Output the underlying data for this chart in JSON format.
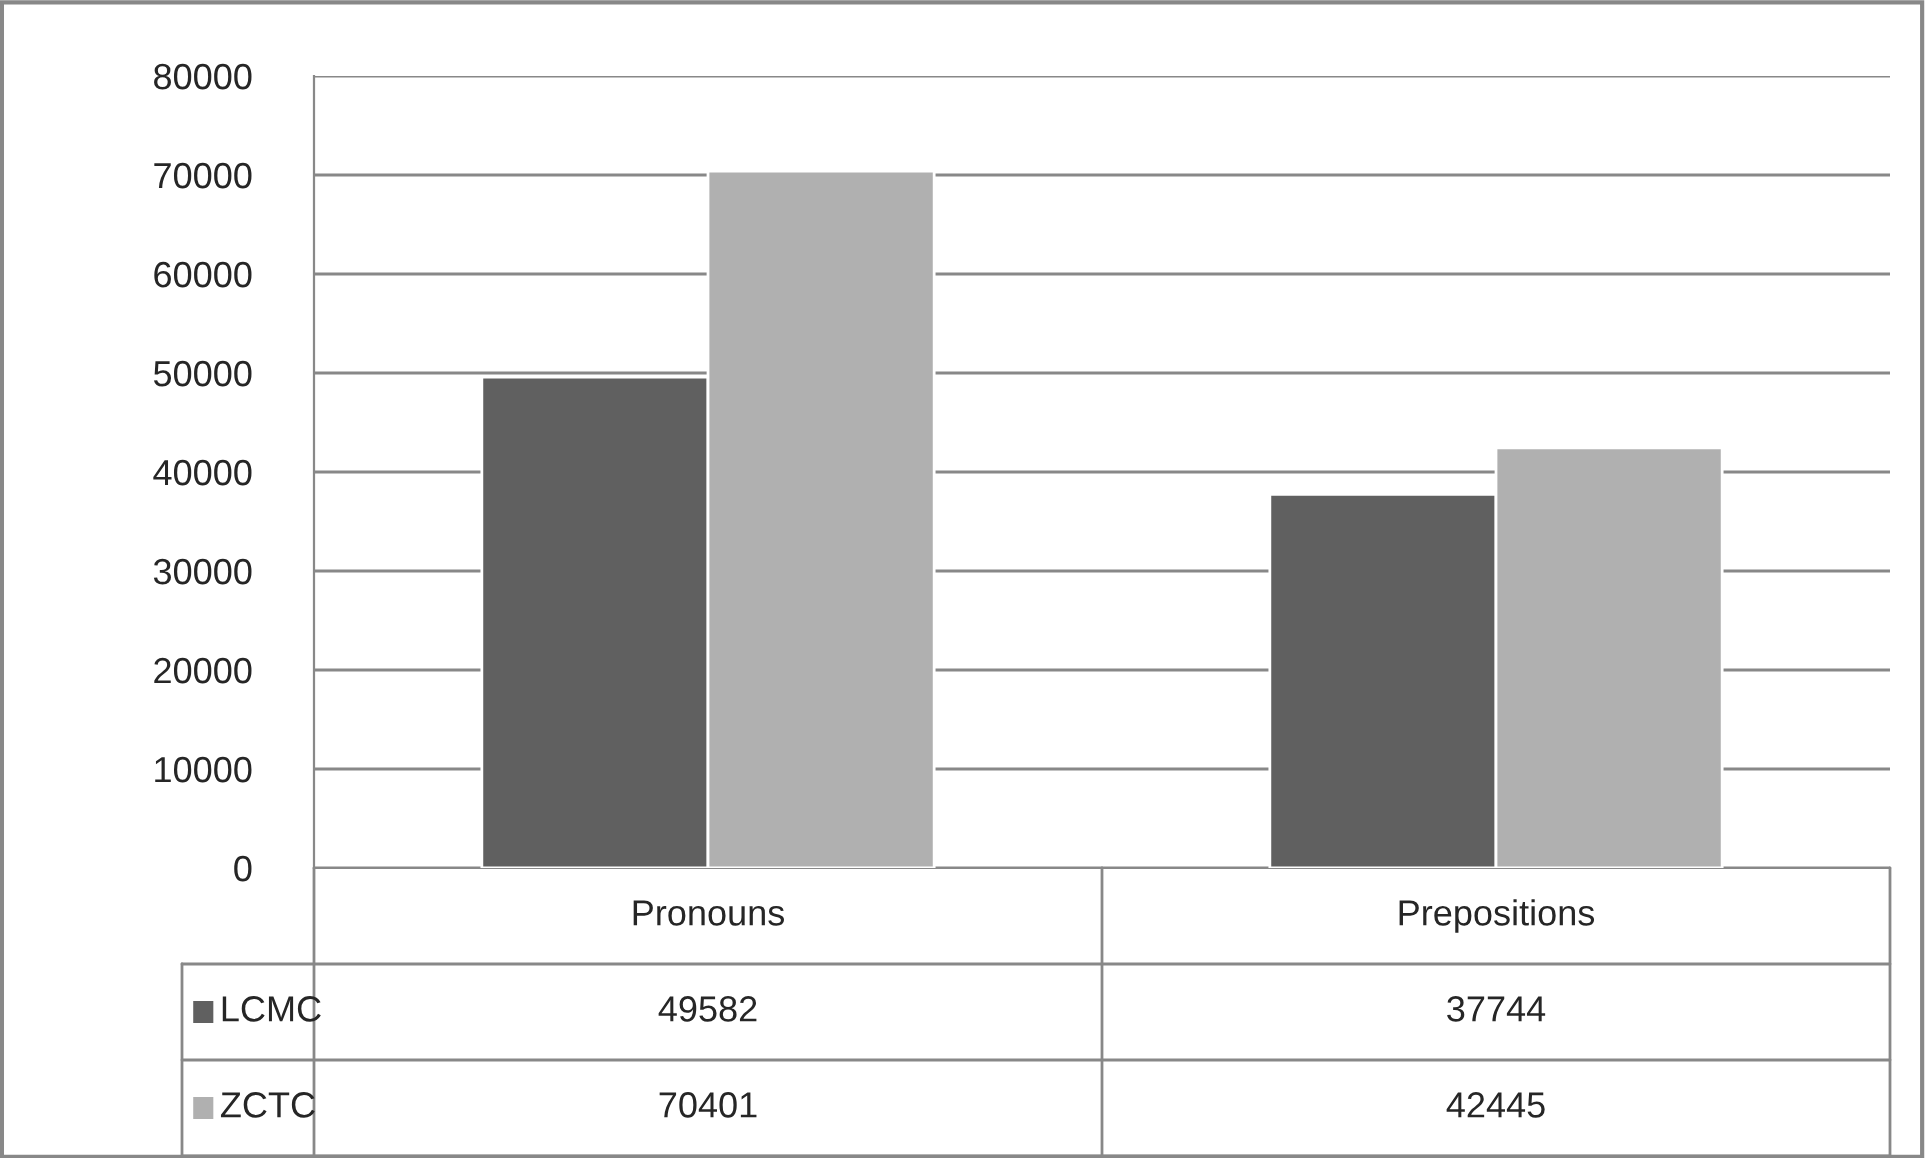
{
  "chart_data": {
    "type": "bar",
    "categories": [
      "Pronouns",
      "Prepositions"
    ],
    "series": [
      {
        "name": "LCMC",
        "color": "#606060",
        "values": [
          49582,
          37744
        ]
      },
      {
        "name": "ZCTC",
        "color": "#b0b0b0",
        "values": [
          70401,
          42445
        ]
      }
    ],
    "ylim": [
      0,
      80000
    ],
    "yticks": [
      0,
      10000,
      20000,
      30000,
      40000,
      50000,
      60000,
      70000,
      80000
    ],
    "grid": "y",
    "data_labels": true,
    "legend": "bottom"
  }
}
